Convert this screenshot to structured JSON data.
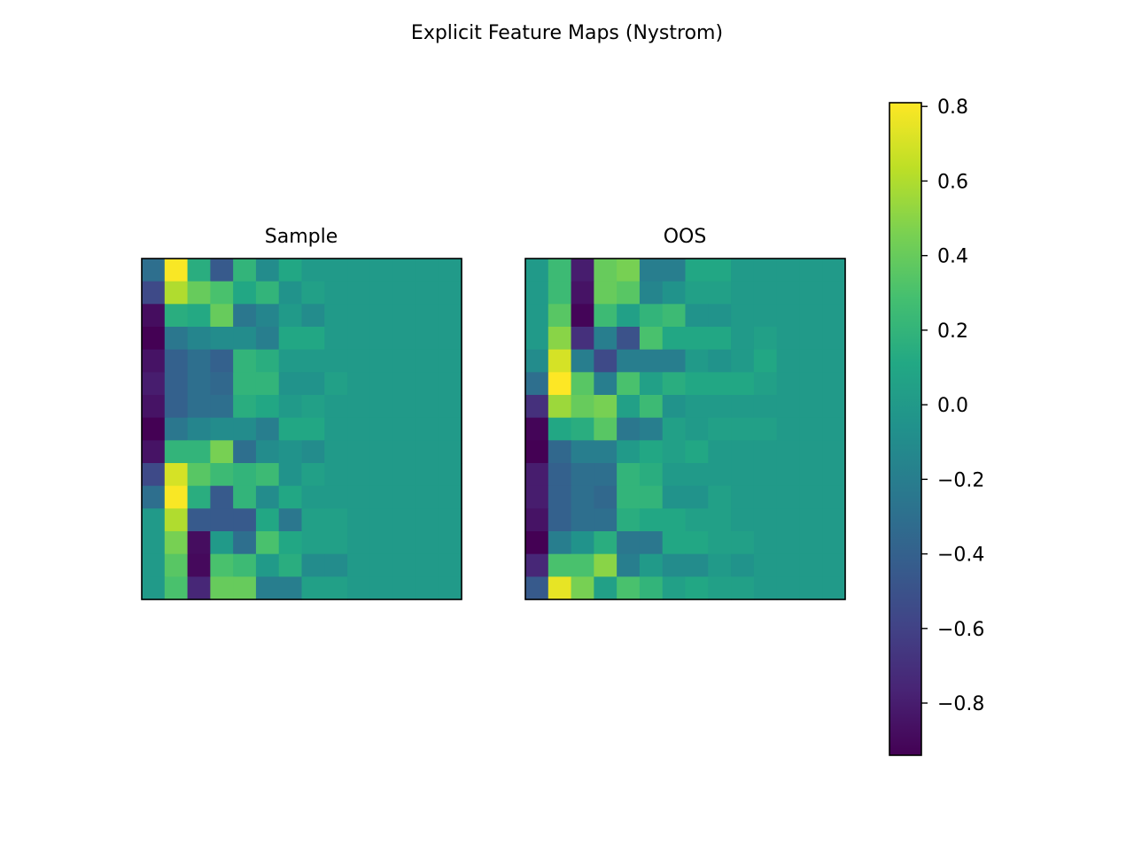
{
  "figure": {
    "title": "Explicit Feature Maps (Nystrom)"
  },
  "colormap": "viridis",
  "chart_data": [
    {
      "type": "heatmap",
      "title": "Sample",
      "rows": 15,
      "cols": 14,
      "axes_ticks": false,
      "vmin": -0.94,
      "vmax": 0.81,
      "values": [
        [
          -0.3,
          0.8,
          0.15,
          -0.45,
          0.2,
          -0.1,
          0.1,
          0.0,
          0.0,
          0.0,
          0.0,
          0.0,
          0.0,
          0.0
        ],
        [
          -0.55,
          0.6,
          0.4,
          0.3,
          0.1,
          0.2,
          -0.05,
          0.05,
          0.0,
          0.0,
          0.0,
          0.0,
          0.0,
          0.0
        ],
        [
          -0.88,
          0.15,
          0.12,
          0.4,
          -0.25,
          -0.15,
          0.0,
          -0.1,
          0.0,
          0.0,
          0.0,
          0.0,
          0.0,
          0.0
        ],
        [
          -0.94,
          -0.25,
          -0.15,
          -0.1,
          -0.1,
          -0.2,
          0.1,
          0.1,
          0.0,
          0.0,
          0.0,
          0.0,
          0.0,
          0.0
        ],
        [
          -0.85,
          -0.4,
          -0.3,
          -0.4,
          0.2,
          0.15,
          0.0,
          0.0,
          0.0,
          0.0,
          0.0,
          0.0,
          0.0,
          0.0
        ],
        [
          -0.8,
          -0.4,
          -0.3,
          -0.35,
          0.2,
          0.2,
          -0.05,
          -0.05,
          0.05,
          0.0,
          0.0,
          0.0,
          0.0,
          0.0
        ],
        [
          -0.85,
          -0.4,
          -0.3,
          -0.3,
          0.15,
          0.1,
          0.0,
          0.05,
          0.0,
          0.0,
          0.0,
          0.0,
          0.0,
          0.0
        ],
        [
          -0.94,
          -0.25,
          -0.15,
          -0.1,
          -0.1,
          -0.2,
          0.1,
          0.1,
          0.0,
          0.0,
          0.0,
          0.0,
          0.0,
          0.0
        ],
        [
          -0.85,
          0.2,
          0.2,
          0.45,
          -0.3,
          -0.1,
          -0.05,
          -0.1,
          0.0,
          0.0,
          0.0,
          0.0,
          0.0,
          0.0
        ],
        [
          -0.55,
          0.7,
          0.35,
          0.25,
          0.2,
          0.25,
          -0.05,
          0.05,
          0.0,
          0.0,
          0.0,
          0.0,
          0.0,
          0.0
        ],
        [
          -0.3,
          0.8,
          0.15,
          -0.45,
          0.2,
          -0.1,
          0.1,
          0.0,
          0.0,
          0.0,
          0.0,
          0.0,
          0.0,
          0.0
        ],
        [
          0.0,
          0.6,
          -0.45,
          -0.45,
          -0.45,
          0.1,
          -0.25,
          0.05,
          0.05,
          0.0,
          0.0,
          0.0,
          0.0,
          0.0
        ],
        [
          0.0,
          0.45,
          -0.88,
          0.0,
          -0.3,
          0.3,
          0.1,
          0.05,
          0.05,
          0.0,
          0.0,
          0.0,
          0.0,
          0.0
        ],
        [
          0.0,
          0.35,
          -0.9,
          0.3,
          0.25,
          0.0,
          0.15,
          -0.1,
          -0.1,
          0.0,
          0.0,
          0.0,
          0.0,
          0.0
        ],
        [
          0.0,
          0.3,
          -0.75,
          0.4,
          0.4,
          -0.2,
          -0.2,
          0.05,
          0.05,
          0.0,
          0.0,
          0.0,
          0.0,
          0.0
        ]
      ]
    },
    {
      "type": "heatmap",
      "title": "OOS",
      "rows": 15,
      "cols": 14,
      "axes_ticks": false,
      "vmin": -0.94,
      "vmax": 0.81,
      "values": [
        [
          0.0,
          0.25,
          -0.8,
          0.4,
          0.45,
          -0.2,
          -0.2,
          0.1,
          0.1,
          0.0,
          0.0,
          0.0,
          0.0,
          0.0
        ],
        [
          0.0,
          0.25,
          -0.85,
          0.4,
          0.35,
          -0.15,
          -0.05,
          0.05,
          0.05,
          0.0,
          0.0,
          0.0,
          0.0,
          0.0
        ],
        [
          0.0,
          0.35,
          -0.92,
          0.25,
          0.05,
          0.2,
          0.25,
          -0.05,
          -0.05,
          0.0,
          0.0,
          0.0,
          0.0,
          0.0
        ],
        [
          0.0,
          0.5,
          -0.7,
          -0.2,
          -0.5,
          0.3,
          0.1,
          0.1,
          0.1,
          0.0,
          0.05,
          0.0,
          0.0,
          0.0
        ],
        [
          -0.1,
          0.7,
          -0.2,
          -0.55,
          -0.2,
          -0.2,
          -0.2,
          0.0,
          -0.05,
          0.0,
          0.1,
          0.0,
          0.0,
          0.0
        ],
        [
          -0.3,
          0.81,
          0.35,
          -0.2,
          0.3,
          0.05,
          0.15,
          0.1,
          0.1,
          0.1,
          0.05,
          0.0,
          0.0,
          0.0
        ],
        [
          -0.7,
          0.55,
          0.4,
          0.45,
          0.05,
          0.25,
          -0.05,
          0.0,
          0.0,
          0.0,
          0.0,
          0.0,
          0.0,
          0.0
        ],
        [
          -0.92,
          0.1,
          0.15,
          0.35,
          -0.25,
          -0.2,
          0.05,
          0.0,
          0.05,
          0.05,
          0.05,
          0.0,
          0.0,
          0.0
        ],
        [
          -0.94,
          -0.35,
          -0.2,
          -0.2,
          0.0,
          0.1,
          0.05,
          0.1,
          0.0,
          0.0,
          0.0,
          0.0,
          0.0,
          0.0
        ],
        [
          -0.8,
          -0.4,
          -0.3,
          -0.3,
          0.2,
          0.15,
          0.0,
          0.0,
          0.0,
          0.0,
          0.0,
          0.0,
          0.0,
          0.0
        ],
        [
          -0.8,
          -0.4,
          -0.3,
          -0.35,
          0.2,
          0.2,
          -0.05,
          -0.05,
          0.05,
          0.0,
          0.0,
          0.0,
          0.0,
          0.0
        ],
        [
          -0.85,
          -0.4,
          -0.3,
          -0.3,
          0.15,
          0.1,
          0.1,
          0.05,
          0.05,
          0.0,
          0.0,
          0.0,
          0.0,
          0.0
        ],
        [
          -0.94,
          -0.2,
          -0.05,
          0.15,
          -0.25,
          -0.25,
          0.1,
          0.1,
          0.05,
          0.05,
          0.0,
          0.0,
          0.0,
          0.0
        ],
        [
          -0.75,
          0.3,
          0.3,
          0.5,
          -0.2,
          0.0,
          -0.1,
          -0.1,
          0.0,
          -0.05,
          0.0,
          0.0,
          0.0,
          0.0
        ],
        [
          -0.45,
          0.75,
          0.45,
          0.05,
          0.3,
          0.2,
          0.05,
          0.1,
          0.05,
          0.05,
          0.0,
          0.0,
          0.0,
          0.0
        ]
      ]
    }
  ],
  "colorbar": {
    "vmin": -0.94,
    "vmax": 0.81,
    "ticks": [
      {
        "value": 0.8,
        "label": "0.8"
      },
      {
        "value": 0.6,
        "label": "0.6"
      },
      {
        "value": 0.4,
        "label": "0.4"
      },
      {
        "value": 0.2,
        "label": "0.2"
      },
      {
        "value": 0.0,
        "label": "0.0"
      },
      {
        "value": -0.2,
        "label": "−0.2"
      },
      {
        "value": -0.4,
        "label": "−0.4"
      },
      {
        "value": -0.6,
        "label": "−0.6"
      },
      {
        "value": -0.8,
        "label": "−0.8"
      }
    ]
  }
}
